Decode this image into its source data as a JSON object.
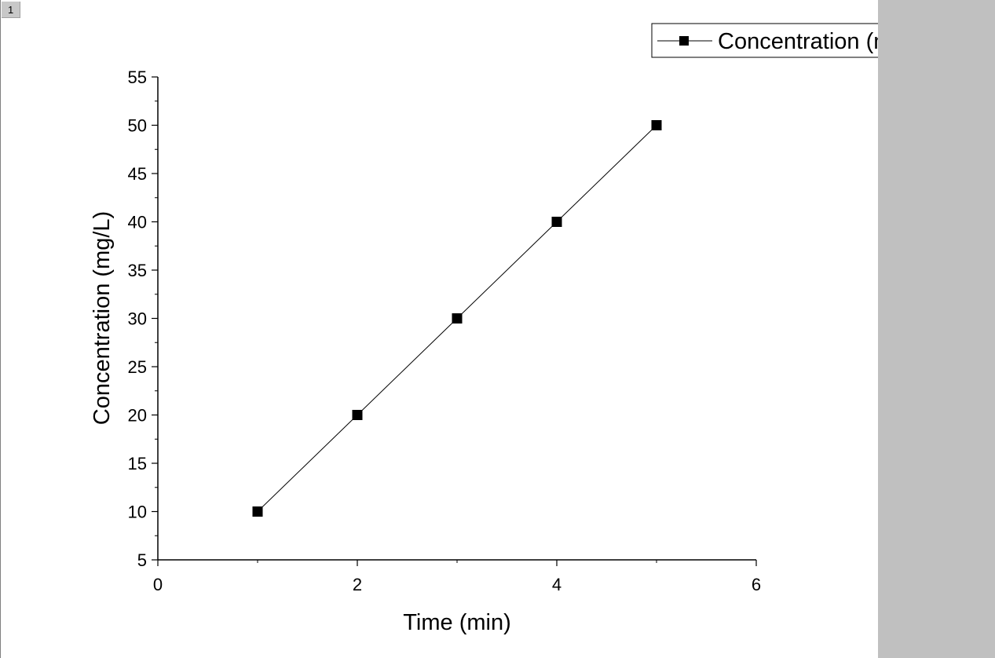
{
  "layer_tab": "1",
  "colors": {
    "panel": "#c0c0c0",
    "series": "#000000"
  },
  "chart_data": {
    "type": "line",
    "title": "",
    "xlabel": "Time (min)",
    "ylabel": "Concentration (mg/L)",
    "xlim": [
      0,
      6
    ],
    "ylim": [
      5,
      55
    ],
    "xticks": [
      0,
      2,
      4,
      6
    ],
    "yticks": [
      5,
      10,
      15,
      20,
      25,
      30,
      35,
      40,
      45,
      50,
      55
    ],
    "x_tick_labels": [
      "0",
      "2",
      "4",
      "6"
    ],
    "y_tick_labels": [
      "5",
      "10",
      "15",
      "20",
      "25",
      "30",
      "35",
      "40",
      "45",
      "50",
      "55"
    ],
    "legend_position": "top-right",
    "grid": false,
    "series": [
      {
        "name": "Concentration (mg/L)",
        "marker": "square",
        "x": [
          1,
          2,
          3,
          4,
          5
        ],
        "y": [
          10,
          20,
          30,
          40,
          50
        ]
      }
    ]
  }
}
